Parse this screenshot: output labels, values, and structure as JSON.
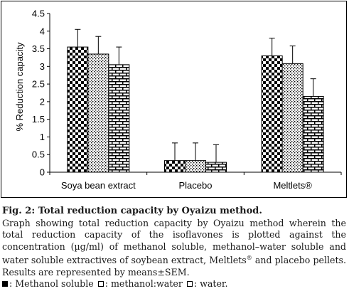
{
  "chart_data": {
    "type": "bar",
    "categories": [
      "Soya bean extract",
      "Placebo",
      "Meltlets®"
    ],
    "ylabel": "% Reduction capacity",
    "xlabel": "",
    "ylim": [
      0,
      4.5
    ],
    "yticks": [
      "0",
      "0.5",
      "1",
      "1.5",
      "2",
      "2.5",
      "3",
      "3.5",
      "4",
      "4.5"
    ],
    "grid": false,
    "error_bars": true,
    "series": [
      {
        "values": [
          3.55,
          0.33,
          3.3
        ],
        "errors": [
          0.5,
          0.5,
          0.5
        ],
        "pattern": "checker"
      },
      {
        "values": [
          3.35,
          0.33,
          3.08
        ],
        "errors": [
          0.5,
          0.5,
          0.5
        ],
        "pattern": "dots"
      },
      {
        "values": [
          3.05,
          0.28,
          2.15
        ],
        "errors": [
          0.5,
          0.5,
          0.5
        ],
        "pattern": "brick"
      }
    ]
  },
  "caption": {
    "title": "Fig. 2: Total reduction capacity by Oyaizu method.",
    "body": "Graph showing total reduction capacity by Oyaizu method wherein the total reduction capacity of the isoflavones is plotted against the concentration (µg/ml) of methanol soluble, methanol–water soluble and water soluble extractives of soybean extract, Meltlets",
    "body_sup": "®",
    "body_end": " and placebo pellets. Results are represented by means±SEM.",
    "legend_1": ": Methanol soluble",
    "legend_2": ": methanol:water",
    "legend_3": ": water."
  }
}
